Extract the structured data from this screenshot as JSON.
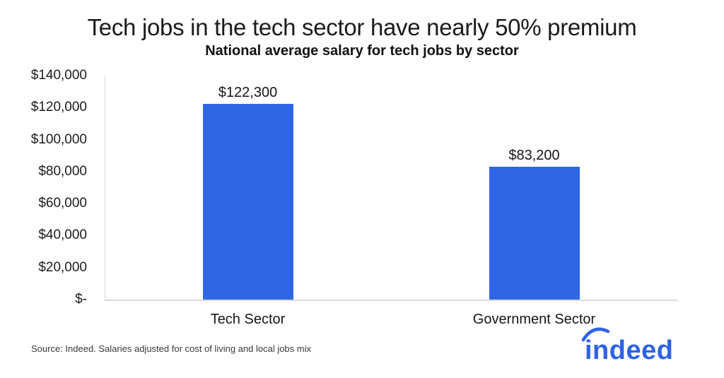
{
  "header": {
    "title": "Tech jobs in the tech sector have nearly 50% premium",
    "subtitle": "National average salary for tech jobs by sector"
  },
  "chart_data": {
    "type": "bar",
    "title": "Tech jobs in the tech sector have nearly 50% premium",
    "subtitle": "National average salary for tech jobs by sector",
    "categories": [
      "Tech Sector",
      "Government Sector"
    ],
    "values": [
      122300,
      83200
    ],
    "value_labels": [
      "$122,300",
      "$83,200"
    ],
    "xlabel": "",
    "ylabel": "",
    "ylim": [
      0,
      140000
    ],
    "y_tick_values": [
      140000,
      120000,
      100000,
      80000,
      60000,
      40000,
      20000,
      0
    ],
    "y_tick_labels": [
      "$140,000",
      "$120,000",
      "$100,000",
      "$80,000",
      "$60,000",
      "$40,000",
      "$20,000",
      "$-"
    ],
    "grid": false,
    "legend": false,
    "bar_color": "#3065E4",
    "axis_color": "#D9D9D9",
    "text_color": "#1A1A1A"
  },
  "footer": {
    "source": "Source: Indeed. Salaries adjusted for cost of living and local jobs mix",
    "logo_text": "indeed",
    "logo_color": "#2F62E4"
  }
}
